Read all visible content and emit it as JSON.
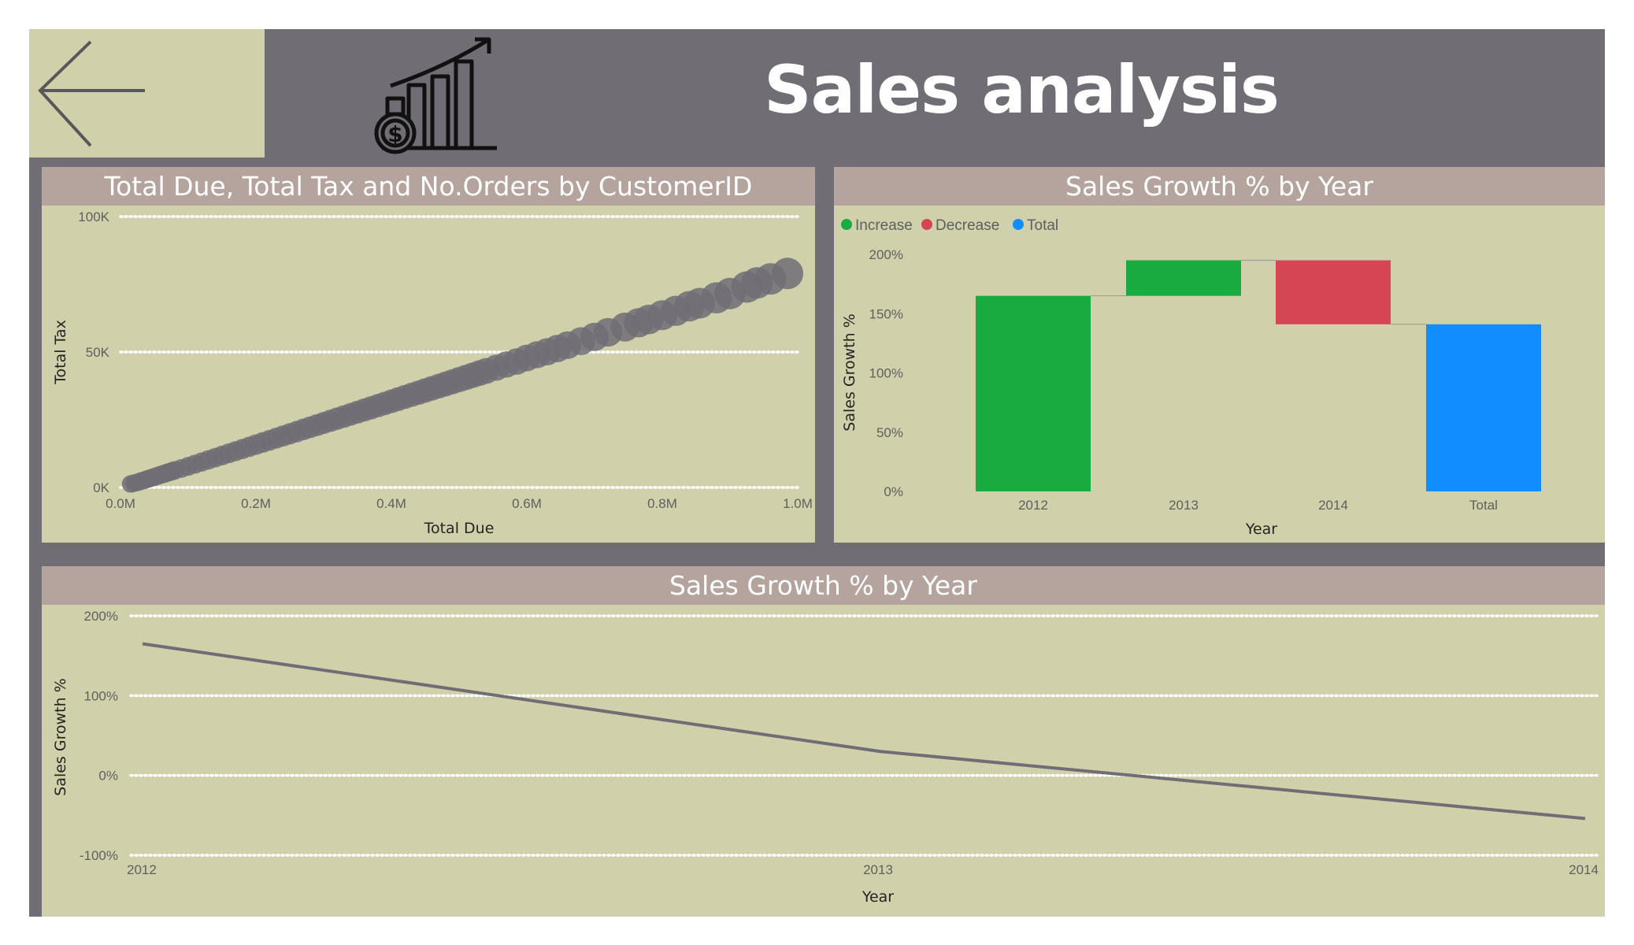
{
  "header": {
    "title": "Sales analysis",
    "back_icon": "arrow-left-icon",
    "logo_icon": "sales-growth-chart-dollar-icon"
  },
  "colors": {
    "canvas": "#706d74",
    "panel_background": "#d0d0ab",
    "panel_header": "#b4a49d",
    "marker": "#706d74",
    "increase": "#1aab40",
    "decrease": "#d64554",
    "total": "#118dff"
  },
  "scatter_panel": {
    "title": "Total Due, Total Tax and No.Orders by CustomerID"
  },
  "waterfall_panel": {
    "title": "Sales Growth % by Year"
  },
  "line_panel": {
    "title": "Sales Growth % by Year"
  },
  "chart_data": [
    {
      "type": "scatter",
      "title": "Total Due, Total Tax and No.Orders by CustomerID",
      "xlabel": "Total Due",
      "ylabel": "Total Tax",
      "x_ticks": [
        "0.0M",
        "0.2M",
        "0.4M",
        "0.6M",
        "0.8M",
        "1.0M"
      ],
      "y_ticks": [
        "0K",
        "50K",
        "100K"
      ],
      "xlim": [
        0,
        1000000
      ],
      "ylim": [
        0,
        100000
      ],
      "grid": "horizontal dotted",
      "points": [
        [
          15000,
          1300
        ],
        [
          20000,
          1600
        ],
        [
          25000,
          1900
        ],
        [
          30000,
          2300
        ],
        [
          35000,
          2700
        ],
        [
          40000,
          3100
        ],
        [
          45000,
          3500
        ],
        [
          50000,
          3900
        ],
        [
          55000,
          4300
        ],
        [
          60000,
          4700
        ],
        [
          65000,
          5100
        ],
        [
          70000,
          5500
        ],
        [
          75000,
          5900
        ],
        [
          80000,
          6300
        ],
        [
          90000,
          7000
        ],
        [
          100000,
          7800
        ],
        [
          110000,
          8600
        ],
        [
          120000,
          9400
        ],
        [
          130000,
          10200
        ],
        [
          140000,
          11000
        ],
        [
          150000,
          11800
        ],
        [
          160000,
          12600
        ],
        [
          170000,
          13400
        ],
        [
          180000,
          14200
        ],
        [
          190000,
          15000
        ],
        [
          200000,
          15800
        ],
        [
          210000,
          16600
        ],
        [
          220000,
          17400
        ],
        [
          230000,
          18200
        ],
        [
          240000,
          19000
        ],
        [
          250000,
          19800
        ],
        [
          260000,
          20600
        ],
        [
          270000,
          21400
        ],
        [
          280000,
          22200
        ],
        [
          290000,
          23000
        ],
        [
          300000,
          23800
        ],
        [
          310000,
          24600
        ],
        [
          320000,
          25400
        ],
        [
          330000,
          26200
        ],
        [
          340000,
          27000
        ],
        [
          350000,
          27800
        ],
        [
          360000,
          28600
        ],
        [
          370000,
          29400
        ],
        [
          380000,
          30200
        ],
        [
          390000,
          31000
        ],
        [
          400000,
          31800
        ],
        [
          410000,
          32600
        ],
        [
          420000,
          33400
        ],
        [
          430000,
          34200
        ],
        [
          440000,
          35000
        ],
        [
          450000,
          35800
        ],
        [
          460000,
          36600
        ],
        [
          470000,
          37400
        ],
        [
          480000,
          38200
        ],
        [
          490000,
          39000
        ],
        [
          500000,
          39800
        ],
        [
          510000,
          40600
        ],
        [
          520000,
          41400
        ],
        [
          530000,
          42200
        ],
        [
          540000,
          43000
        ],
        [
          555000,
          44200
        ],
        [
          570000,
          45400
        ],
        [
          585000,
          46500
        ],
        [
          600000,
          47800
        ],
        [
          615000,
          49000
        ],
        [
          630000,
          50100
        ],
        [
          645000,
          51300
        ],
        [
          660000,
          52500
        ],
        [
          680000,
          54000
        ],
        [
          700000,
          55600
        ],
        [
          720000,
          57300
        ],
        [
          745000,
          59200
        ],
        [
          765000,
          60800
        ],
        [
          780000,
          62000
        ],
        [
          800000,
          63600
        ],
        [
          820000,
          65200
        ],
        [
          840000,
          66900
        ],
        [
          855000,
          68000
        ],
        [
          880000,
          70000
        ],
        [
          900000,
          71600
        ],
        [
          925000,
          74000
        ],
        [
          940000,
          75500
        ],
        [
          960000,
          77000
        ],
        [
          985000,
          79000
        ]
      ]
    },
    {
      "type": "waterfall",
      "title": "Sales Growth % by Year",
      "xlabel": "Year",
      "ylabel": "Sales Growth %",
      "legend": [
        "Increase",
        "Decrease",
        "Total"
      ],
      "legend_position": "top-left",
      "categories": [
        "2012",
        "2013",
        "2014",
        "Total"
      ],
      "values": [
        165,
        30,
        -54,
        141
      ],
      "kinds": [
        "Increase",
        "Increase",
        "Decrease",
        "Total"
      ],
      "y_ticks": [
        "0%",
        "50%",
        "100%",
        "150%",
        "200%"
      ],
      "ylim": [
        0,
        200
      ]
    },
    {
      "type": "line",
      "title": "Sales Growth % by Year",
      "xlabel": "Year",
      "ylabel": "Sales Growth %",
      "categories": [
        "2012",
        "2013",
        "2014"
      ],
      "values": [
        165,
        30,
        -54
      ],
      "y_ticks": [
        "200%",
        "100%",
        "0%",
        "-100%"
      ],
      "ylim": [
        -100,
        200
      ],
      "grid": "horizontal dotted"
    }
  ]
}
